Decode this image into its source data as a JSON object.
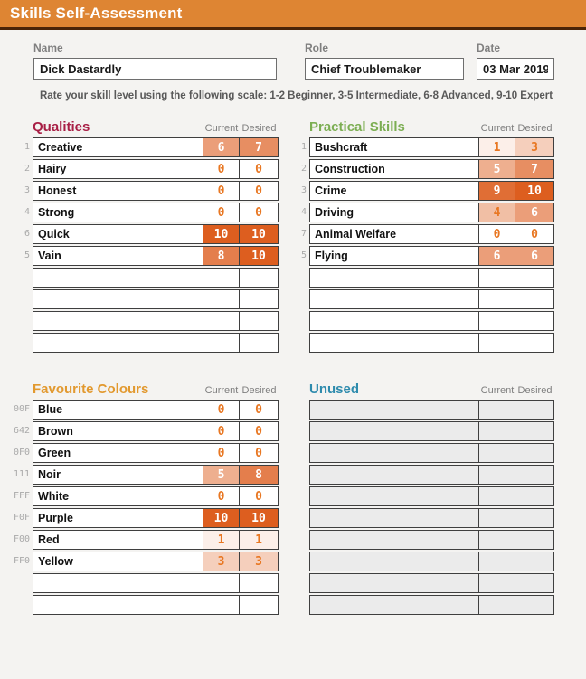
{
  "title": "Skills Self-Assessment",
  "form": {
    "name": {
      "label": "Name",
      "value": "Dick Dastardly"
    },
    "role": {
      "label": "Role",
      "value": "Chief Troublemaker"
    },
    "date": {
      "label": "Date",
      "value": "03 Mar 2019"
    }
  },
  "instruction": "Rate your skill level using the following scale: 1-2 Beginner, 3-5 Intermediate, 6-8 Advanced, 9-10 Expert",
  "column_headers": {
    "current": "Current",
    "desired": "Desired"
  },
  "rating_scale": {
    "min_value": 0,
    "max_value": 10,
    "min_color": "#FFFFFF",
    "max_color": "#DD5E1F",
    "low_text_color": "#E87722",
    "high_text_color": "#FFFFFF",
    "white_text_threshold": 5
  },
  "colors": {
    "header_bg": "#DE8533",
    "header_underline": "#4A2408",
    "page_bg": "#F4F3F1",
    "cell_border": "#3F3F3F",
    "label_gray": "#7F7F7F",
    "row_label_gray": "#A9A9A9",
    "instruction_text": "#595959",
    "unused_cell_fill": "#EBEBEB"
  },
  "sections": [
    {
      "id": "qualities",
      "title": "Qualities",
      "accent": "#A81E45",
      "total_rows": 10,
      "empty_row_fill": "#FFFFFF",
      "rows": [
        {
          "label": "1",
          "skill": "Creative",
          "current": 6,
          "desired": 7
        },
        {
          "label": "2",
          "skill": "Hairy",
          "current": 0,
          "desired": 0
        },
        {
          "label": "3",
          "skill": "Honest",
          "current": 0,
          "desired": 0
        },
        {
          "label": "4",
          "skill": "Strong",
          "current": 0,
          "desired": 0
        },
        {
          "label": "6",
          "skill": "Quick",
          "current": 10,
          "desired": 10
        },
        {
          "label": "5",
          "skill": "Vain",
          "current": 8,
          "desired": 10
        }
      ]
    },
    {
      "id": "practical-skills",
      "title": "Practical Skills",
      "accent": "#7CAE53",
      "total_rows": 10,
      "empty_row_fill": "#FFFFFF",
      "rows": [
        {
          "label": "1",
          "skill": "Bushcraft",
          "current": 1,
          "desired": 3
        },
        {
          "label": "2",
          "skill": "Construction",
          "current": 5,
          "desired": 7
        },
        {
          "label": "3",
          "skill": "Crime",
          "current": 9,
          "desired": 10
        },
        {
          "label": "4",
          "skill": "Driving",
          "current": 4,
          "desired": 6
        },
        {
          "label": "7",
          "skill": "Animal Welfare",
          "current": 0,
          "desired": 0
        },
        {
          "label": "5",
          "skill": "Flying",
          "current": 6,
          "desired": 6
        }
      ]
    },
    {
      "id": "favourite-colours",
      "title": "Favourite Colours",
      "accent": "#E2992F",
      "total_rows": 10,
      "empty_row_fill": "#FFFFFF",
      "rows": [
        {
          "label": "00F",
          "skill": "Blue",
          "current": 0,
          "desired": 0
        },
        {
          "label": "642",
          "skill": "Brown",
          "current": 0,
          "desired": 0
        },
        {
          "label": "0F0",
          "skill": "Green",
          "current": 0,
          "desired": 0
        },
        {
          "label": "111",
          "skill": "Noir",
          "current": 5,
          "desired": 8
        },
        {
          "label": "FFF",
          "skill": "White",
          "current": 0,
          "desired": 0
        },
        {
          "label": "F0F",
          "skill": "Purple",
          "current": 10,
          "desired": 10
        },
        {
          "label": "F00",
          "skill": "Red",
          "current": 1,
          "desired": 1
        },
        {
          "label": "FF0",
          "skill": "Yellow",
          "current": 3,
          "desired": 3
        }
      ]
    },
    {
      "id": "unused",
      "title": "Unused",
      "accent": "#2E8BAD",
      "total_rows": 10,
      "empty_row_fill": "#EBEBEB",
      "rows": []
    }
  ]
}
